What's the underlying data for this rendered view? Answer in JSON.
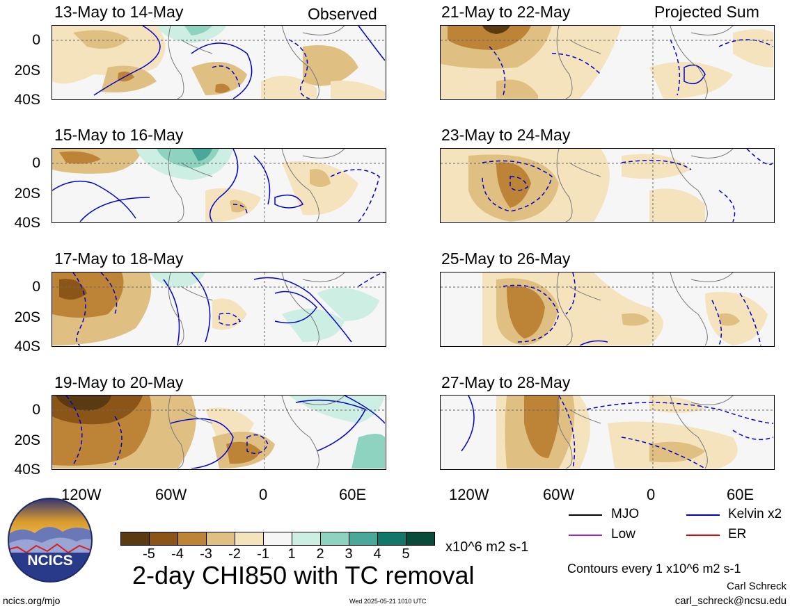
{
  "headers": {
    "observed": "Observed",
    "projected": "Projected Sum"
  },
  "panels": [
    {
      "id": "p1",
      "title": "13-May to 14-May"
    },
    {
      "id": "p2",
      "title": "15-May to 16-May"
    },
    {
      "id": "p3",
      "title": "17-May to 18-May"
    },
    {
      "id": "p4",
      "title": "19-May to 20-May"
    },
    {
      "id": "p5",
      "title": "21-May to 22-May"
    },
    {
      "id": "p6",
      "title": "23-May to 24-May"
    },
    {
      "id": "p7",
      "title": "25-May to 26-May"
    },
    {
      "id": "p8",
      "title": "27-May to 28-May"
    }
  ],
  "y_ticks": [
    "0",
    "20S",
    "40S"
  ],
  "x_ticks": [
    "120W",
    "60W",
    "0",
    "60E"
  ],
  "colorbar": {
    "colors": [
      "#5a3a10",
      "#8c5518",
      "#bd8336",
      "#dfc082",
      "#f4e3bd",
      "#f6f6f6",
      "#cdeee3",
      "#8ed3c0",
      "#4aa89a",
      "#13766a",
      "#0a4a3a"
    ],
    "labels": [
      "-5",
      "-4",
      "-3",
      "-2",
      "-1",
      "1",
      "2",
      "3",
      "4",
      "5"
    ],
    "units": "x10^6 m2 s-1"
  },
  "main_title": "2-day CHI850 with TC removal",
  "legend": [
    {
      "label": "MJO",
      "color": "#000000"
    },
    {
      "label": "Kelvin x2",
      "color": "#0000cc"
    },
    {
      "label": "Low",
      "color": "#a020f0"
    },
    {
      "label": "ER",
      "color": "#ee0000"
    }
  ],
  "contour_note": "Contours every 1 x10^6 m2 s-1",
  "footer": {
    "logo_text": "NCICS",
    "left_url": "ncics.org/mjo",
    "timestamp": "Wed 2025-05-21 1010 UTC",
    "author": "Carl Schreck",
    "email": "carl_schreck@ncsu.edu"
  }
}
